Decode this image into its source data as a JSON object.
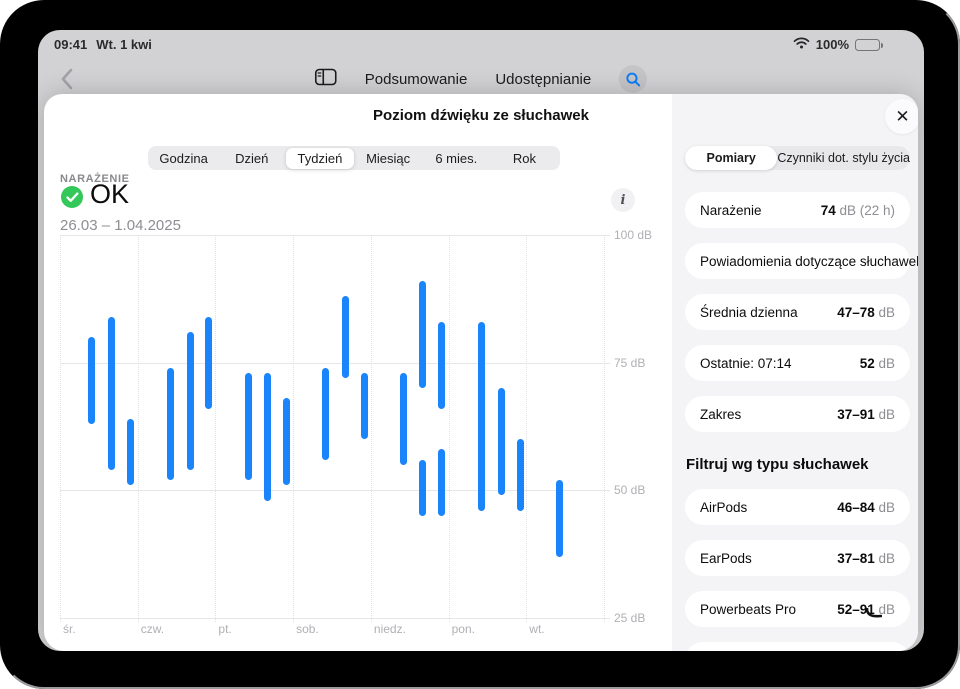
{
  "status_bar": {
    "time": "09:41",
    "date": "Wt. 1 kwi",
    "battery": "100%"
  },
  "nav": {
    "summary_label": "Podsumowanie",
    "sharing_label": "Udostępnianie"
  },
  "sheet": {
    "title": "Poziom dźwięku ze słuchawek",
    "close_glyph": "✕",
    "time_segments": [
      "Godzina",
      "Dzień",
      "Tydzień",
      "Miesiąc",
      "6 mies.",
      "Rok"
    ],
    "selected_segment": "Tydzień",
    "exposure_label": "NARAŻENIE",
    "exposure_status": "OK",
    "date_range": "26.03 – 1.04.2025",
    "info_glyph": "i"
  },
  "chart_data": {
    "type": "range-bar",
    "title": "Poziom dźwięku ze słuchawek — Tydzień",
    "unit": "dB",
    "y_axis": {
      "max": 100,
      "min": 25
    },
    "y_ticks": [
      "100 dB",
      "75 dB",
      "50 dB",
      "25 dB"
    ],
    "day_labels": [
      "śr.",
      "czw.",
      "pt.",
      "sob.",
      "niedz.",
      "pon.",
      "wt."
    ],
    "grid": true,
    "bar_color": "#1a85fa",
    "bars": [
      {
        "day": "śr.",
        "x": 28,
        "min": 63,
        "max": 80
      },
      {
        "day": "śr.",
        "x": 48,
        "min": 54,
        "max": 84
      },
      {
        "day": "śr.",
        "x": 67,
        "min": 51,
        "max": 64
      },
      {
        "day": "czw.",
        "x": 107,
        "min": 52,
        "max": 74
      },
      {
        "day": "czw.",
        "x": 127,
        "min": 54,
        "max": 81
      },
      {
        "day": "czw.",
        "x": 145,
        "min": 66,
        "max": 84
      },
      {
        "day": "pt.",
        "x": 185,
        "min": 52,
        "max": 73
      },
      {
        "day": "pt.",
        "x": 204,
        "min": 48,
        "max": 73
      },
      {
        "day": "pt.",
        "x": 223,
        "min": 51,
        "max": 68
      },
      {
        "day": "sob.",
        "x": 262,
        "min": 56,
        "max": 74
      },
      {
        "day": "sob.",
        "x": 282,
        "min": 72,
        "max": 88
      },
      {
        "day": "sob.",
        "x": 301,
        "min": 60,
        "max": 73
      },
      {
        "day": "niedz.",
        "x": 340,
        "min": 55,
        "max": 73
      },
      {
        "day": "niedz.",
        "x": 359,
        "min": 70,
        "max": 91
      },
      {
        "day": "niedz.",
        "x": 359,
        "min": 45,
        "max": 56
      },
      {
        "day": "niedz.",
        "x": 378,
        "min": 66,
        "max": 83
      },
      {
        "day": "niedz.",
        "x": 378,
        "min": 45,
        "max": 58
      },
      {
        "day": "pon.",
        "x": 418,
        "min": 46,
        "max": 83
      },
      {
        "day": "pon.",
        "x": 438,
        "min": 49,
        "max": 70
      },
      {
        "day": "pon.",
        "x": 457,
        "min": 46,
        "max": 60
      },
      {
        "day": "wt.",
        "x": 496,
        "min": 37,
        "max": 52
      }
    ]
  },
  "panel": {
    "tabs": [
      "Pomiary",
      "Czynniki dot. stylu życia"
    ],
    "selected_tab": "Pomiary",
    "metrics": [
      {
        "label": "Narażenie",
        "value": "74",
        "suffix": " dB (22 h)"
      },
      {
        "label": "Powiadomienia dotyczące słuchawek",
        "value": "",
        "suffix": "--"
      },
      {
        "label": "Średnia dzienna",
        "value": "47–78",
        "suffix": " dB"
      },
      {
        "label": "Ostatnie: 07:14",
        "value": "52",
        "suffix": " dB"
      },
      {
        "label": "Zakres",
        "value": "37–91",
        "suffix": " dB"
      }
    ],
    "filter_heading": "Filtruj wg typu słuchawek",
    "filters": [
      {
        "label": "AirPods",
        "value": "46–84",
        "suffix": " dB"
      },
      {
        "label": "EarPods",
        "value": "37–81",
        "suffix": " dB"
      },
      {
        "label": "Powerbeats Pro",
        "value": "52–91",
        "suffix": " dB"
      }
    ]
  },
  "colors": {
    "accent_blue": "#1a85fa",
    "ok_green": "#34c759",
    "scrim_gray": "#d2d2d4"
  }
}
